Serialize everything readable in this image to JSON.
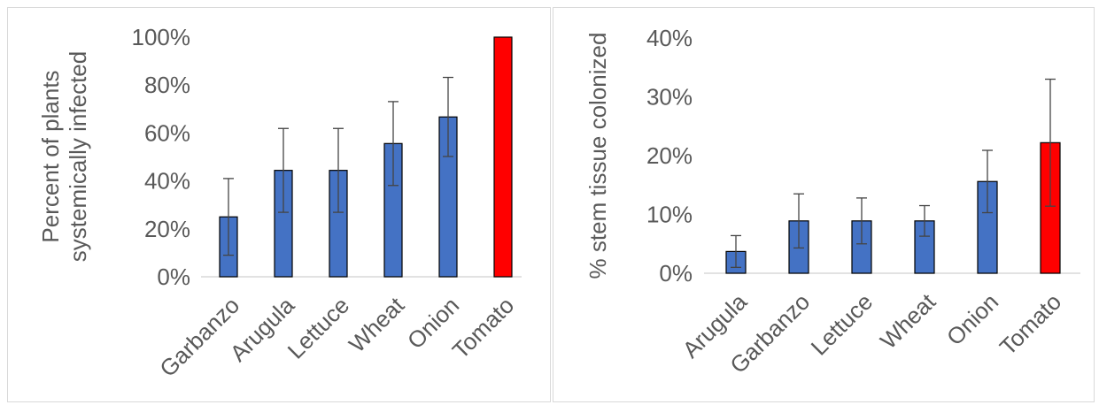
{
  "chart_data": [
    {
      "type": "bar",
      "title": "",
      "ylabel_lines": [
        "Percent of plants",
        "systemically infected"
      ],
      "xlabel": "",
      "ylim": [
        0,
        1
      ],
      "yticks": [
        {
          "value": 0,
          "label": "0%"
        },
        {
          "value": 0.2,
          "label": "20%"
        },
        {
          "value": 0.4,
          "label": "40%"
        },
        {
          "value": 0.6,
          "label": "60%"
        },
        {
          "value": 0.8,
          "label": "80%"
        },
        {
          "value": 1.0,
          "label": "100%"
        }
      ],
      "grid": false,
      "categories": [
        "Garbanzo",
        "Arugula",
        "Lettuce",
        "Wheat",
        "Onion",
        "Tomato"
      ],
      "values": [
        0.25,
        0.444,
        0.444,
        0.556,
        0.667,
        1.0
      ],
      "errors": [
        0.16,
        0.175,
        0.175,
        0.175,
        0.165,
        0
      ],
      "colors": [
        "#4472c4",
        "#4472c4",
        "#4472c4",
        "#4472c4",
        "#4472c4",
        "#ff0000"
      ]
    },
    {
      "type": "bar",
      "title": "",
      "ylabel_lines": [
        "% stem tissue colonized"
      ],
      "xlabel": "",
      "ylim": [
        0,
        0.4
      ],
      "yticks": [
        {
          "value": 0,
          "label": "0%"
        },
        {
          "value": 0.1,
          "label": "10%"
        },
        {
          "value": 0.2,
          "label": "20%"
        },
        {
          "value": 0.3,
          "label": "30%"
        },
        {
          "value": 0.4,
          "label": "40%"
        }
      ],
      "grid": false,
      "categories": [
        "Arugula",
        "Garbanzo",
        "Lettuce",
        "Wheat",
        "Onion",
        "Tomato"
      ],
      "values": [
        0.037,
        0.089,
        0.089,
        0.089,
        0.156,
        0.222
      ],
      "errors": [
        0.027,
        0.046,
        0.039,
        0.026,
        0.053,
        0.108
      ],
      "colors": [
        "#4472c4",
        "#4472c4",
        "#4472c4",
        "#4472c4",
        "#4472c4",
        "#ff0000"
      ]
    }
  ]
}
